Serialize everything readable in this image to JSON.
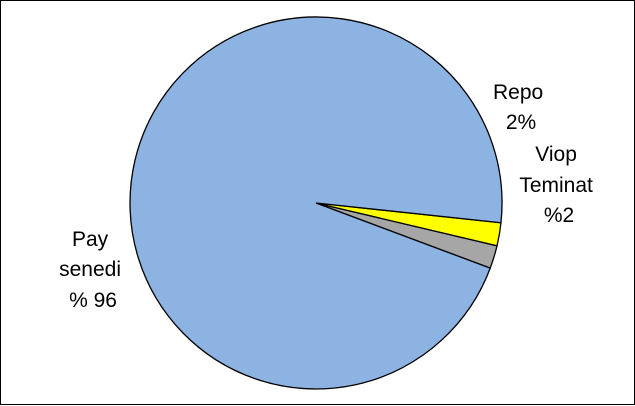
{
  "chart_data": {
    "type": "pie",
    "title": "",
    "slices": [
      {
        "label_lines": [
          "Repo",
          "2%"
        ],
        "value": 2,
        "color": "#a6a6a6"
      },
      {
        "label_lines": [
          "Viop",
          "Teminat",
          "%2"
        ],
        "value": 2,
        "color": "#ffff00"
      },
      {
        "label_lines": [
          "Pay",
          "senedi",
          "% 96"
        ],
        "value": 96,
        "color": "#8db3e2"
      }
    ],
    "start_angle_deg": -20.5,
    "direction": "counterclockwise",
    "legend": "none",
    "data_labels": "outside"
  }
}
